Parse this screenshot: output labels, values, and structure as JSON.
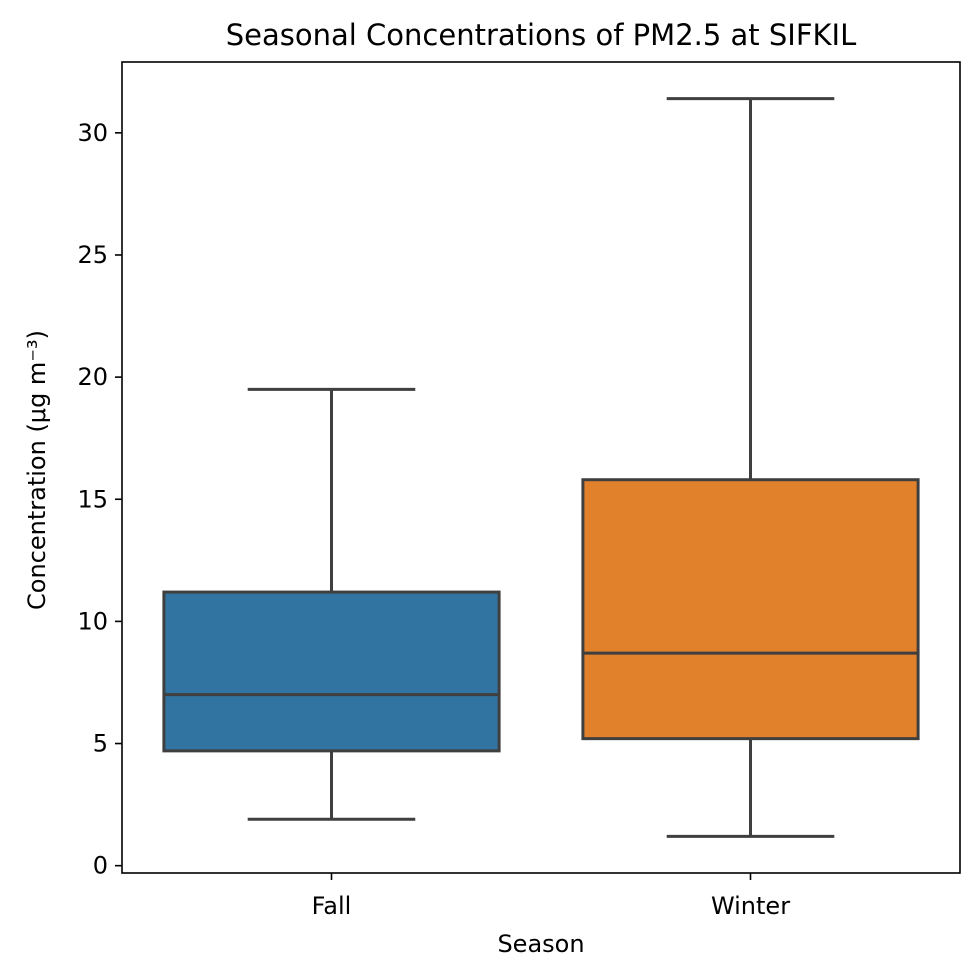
{
  "chart_data": {
    "type": "box",
    "title": "Seasonal Concentrations of PM2.5 at SIFKIL",
    "xlabel": "Season",
    "ylabel": "Concentration (μg m⁻³)",
    "ylim": [
      -0.3,
      32.9
    ],
    "yticks": [
      0,
      5,
      10,
      15,
      20,
      25,
      30
    ],
    "categories": [
      "Fall",
      "Winter"
    ],
    "boxes": [
      {
        "category": "Fall",
        "whisker_low": 1.9,
        "q1": 4.7,
        "median": 7.0,
        "q3": 11.2,
        "whisker_high": 19.5,
        "color": "#3274a1"
      },
      {
        "category": "Winter",
        "whisker_low": 1.2,
        "q1": 5.2,
        "median": 8.7,
        "q3": 15.8,
        "whisker_high": 31.4,
        "color": "#e1812c"
      }
    ],
    "grid": false,
    "line_color": "#3f3f3f"
  }
}
